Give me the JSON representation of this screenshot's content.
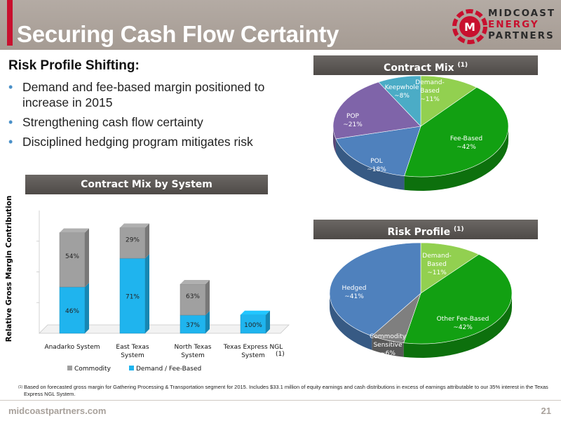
{
  "header": {
    "title": "Securing Cash Flow Certainty",
    "logo": {
      "line1": "MIDCOAST",
      "line2": "ENERGY",
      "line3": "PARTNERS",
      "mark": "M"
    }
  },
  "left_panel": {
    "subhead": "Risk Profile Shifting:",
    "bullets": [
      "Demand and fee-based margin positioned to increase in 2015",
      "Strengthening cash flow certainty",
      "Disciplined hedging program mitigates risk"
    ]
  },
  "banners": {
    "contract_mix_title": "Contract Mix",
    "contract_mix_sup": "(1)",
    "system_title": "Contract Mix by System",
    "risk_title": "Risk Profile",
    "risk_sup": "(1)"
  },
  "chart_data": [
    {
      "type": "pie",
      "title": "Contract Mix (1)",
      "slices": [
        {
          "label": "Demand-Based",
          "value_text": "~11%",
          "value": 11,
          "color": "#92d050"
        },
        {
          "label": "Fee-Based",
          "value_text": "~42%",
          "value": 42,
          "color": "#12a012"
        },
        {
          "label": "POL",
          "value_text": "~18%",
          "value": 18,
          "color": "#4f81bd"
        },
        {
          "label": "POP",
          "value_text": "~21%",
          "value": 21,
          "color": "#7f64a9"
        },
        {
          "label": "Keepwhole",
          "value_text": "~8%",
          "value": 8,
          "color": "#4bacc6"
        }
      ]
    },
    {
      "type": "bar",
      "title": "Contract Mix by System",
      "ylabel": "Relative Gross Margin Contribution",
      "categories": [
        "Anadarko System",
        "East Texas System",
        "North Texas System",
        "Texas Express NGL System"
      ],
      "category_footnote": "(1)",
      "relative_totals": [
        0.82,
        0.86,
        0.4,
        0.15
      ],
      "series": [
        {
          "name": "Demand / Fee-Based",
          "color": "#1fb4ee",
          "values": [
            46,
            71,
            37,
            100
          ],
          "labels": [
            "46%",
            "71%",
            "37%",
            "100%"
          ]
        },
        {
          "name": "Commodity",
          "color": "#a0a0a0",
          "values": [
            54,
            29,
            63,
            0
          ],
          "labels": [
            "54%",
            "29%",
            "63%",
            ""
          ]
        }
      ],
      "legend": [
        "Commodity",
        "Demand / Fee-Based"
      ]
    },
    {
      "type": "pie",
      "title": "Risk Profile (1)",
      "slices": [
        {
          "label": "Demand-Based",
          "value_text": "~11%",
          "value": 11,
          "color": "#92d050"
        },
        {
          "label": "Other Fee-Based",
          "value_text": "~42%",
          "value": 42,
          "color": "#12a012"
        },
        {
          "label": "Commodity Sensitive",
          "value_text": "~6%",
          "value": 6,
          "color": "#7f7f7f"
        },
        {
          "label": "Hedged",
          "value_text": "~41%",
          "value": 41,
          "color": "#4f81bd"
        }
      ]
    }
  ],
  "footnote": {
    "marker": "(1)",
    "text": "Based on forecasted gross margin for Gathering Processing & Transportation segment for 2015. Includes $33.1 million of equity earnings and cash distributions in excess of earnings attributable to our 35% interest in the Texas Express NGL System."
  },
  "footer": {
    "url": "midcoastpartners.com",
    "page": "21"
  }
}
